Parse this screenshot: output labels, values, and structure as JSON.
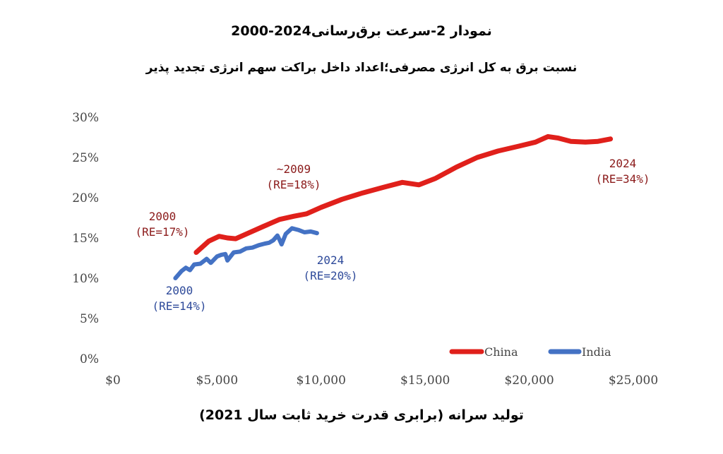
{
  "chart_data": {
    "type": "line",
    "title": "نمودار 2-سرعت برق‌رسانی2024-2000",
    "subtitle": "نسبت برق به کل انرژی مصرفی؛اعداد داخل براکت  سهم انرژی تجدید پذیر",
    "xlabel": "تولید سرانه (برابری قدرت خرید ثابت سال 2021)",
    "ylabel": "",
    "xlim": [
      0,
      25000
    ],
    "ylim": [
      0,
      30
    ],
    "x_ticks": [
      0,
      5000,
      10000,
      15000,
      20000,
      25000
    ],
    "x_tick_labels": [
      "$0",
      "$5,000",
      "$10,000",
      "$15,000",
      "$20,000",
      "$25,000"
    ],
    "y_ticks": [
      0,
      5,
      10,
      15,
      20,
      25,
      30
    ],
    "y_tick_labels": [
      "0%",
      "5%",
      "10%",
      "15%",
      "20%",
      "25%",
      "30%"
    ],
    "grid": false,
    "legend_position": "bottom-right",
    "series": [
      {
        "name": "China",
        "color": "#e0201b",
        "points": [
          [
            4000,
            13.2
          ],
          [
            4600,
            14.6
          ],
          [
            5100,
            15.2
          ],
          [
            5500,
            15.0
          ],
          [
            5900,
            14.9
          ],
          [
            6500,
            15.6
          ],
          [
            7200,
            16.4
          ],
          [
            8000,
            17.3
          ],
          [
            8700,
            17.7
          ],
          [
            9300,
            18.0
          ],
          [
            10000,
            18.8
          ],
          [
            11000,
            19.8
          ],
          [
            12000,
            20.6
          ],
          [
            13000,
            21.3
          ],
          [
            13900,
            21.9
          ],
          [
            14700,
            21.6
          ],
          [
            15500,
            22.4
          ],
          [
            16500,
            23.8
          ],
          [
            17500,
            25.0
          ],
          [
            18500,
            25.8
          ],
          [
            19500,
            26.4
          ],
          [
            20300,
            26.9
          ],
          [
            20900,
            27.6
          ],
          [
            21400,
            27.4
          ],
          [
            22000,
            27.0
          ],
          [
            22700,
            26.9
          ],
          [
            23300,
            27.0
          ],
          [
            23900,
            27.3
          ]
        ]
      },
      {
        "name": "India",
        "color": "#4472c4",
        "points": [
          [
            3000,
            10.0
          ],
          [
            3300,
            10.9
          ],
          [
            3500,
            11.3
          ],
          [
            3700,
            11.0
          ],
          [
            3900,
            11.7
          ],
          [
            4200,
            11.8
          ],
          [
            4500,
            12.4
          ],
          [
            4700,
            11.9
          ],
          [
            5000,
            12.7
          ],
          [
            5200,
            12.9
          ],
          [
            5400,
            13.0
          ],
          [
            5500,
            12.2
          ],
          [
            5800,
            13.2
          ],
          [
            6100,
            13.3
          ],
          [
            6400,
            13.7
          ],
          [
            6700,
            13.8
          ],
          [
            7000,
            14.1
          ],
          [
            7300,
            14.3
          ],
          [
            7500,
            14.4
          ],
          [
            7700,
            14.7
          ],
          [
            7900,
            15.3
          ],
          [
            8000,
            14.8
          ],
          [
            8100,
            14.2
          ],
          [
            8300,
            15.5
          ],
          [
            8600,
            16.2
          ],
          [
            8900,
            16.0
          ],
          [
            9200,
            15.7
          ],
          [
            9500,
            15.8
          ],
          [
            9800,
            15.6
          ]
        ]
      }
    ],
    "annotations": [
      {
        "id": "china-2000",
        "year": "2000",
        "re": "(RE=17%)",
        "color": "#8b1a1a"
      },
      {
        "id": "china-2009",
        "year": "~2009",
        "re": "(RE=18%)",
        "color": "#8b1a1a"
      },
      {
        "id": "china-2024",
        "year": "2024",
        "re": "(RE=34%)",
        "color": "#8b1a1a"
      },
      {
        "id": "india-2000",
        "year": "2000",
        "re": "(RE=14%)",
        "color": "#2e4a9a"
      },
      {
        "id": "india-2024",
        "year": "2024",
        "re": "(RE=20%)",
        "color": "#2e4a9a"
      }
    ]
  }
}
